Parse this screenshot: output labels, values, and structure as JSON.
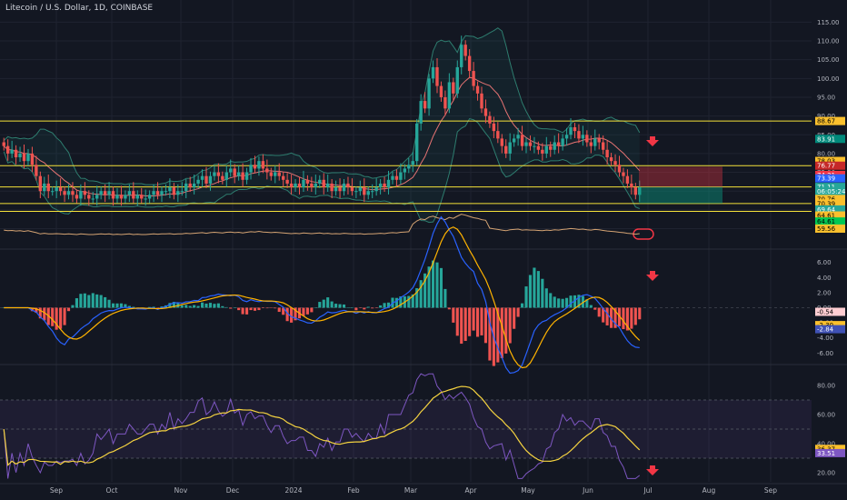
{
  "header": {
    "title": "Litecoin / U.S. Dollar, 1D, COINBASE"
  },
  "chart_data": {
    "type": "candlestick",
    "title": "Litecoin / U.S. Dollar, 1D, COINBASE",
    "price_ylim": [
      56,
      118
    ],
    "price_ticks": [
      "115.00",
      "110.00",
      "105.00",
      "100.00",
      "95.00",
      "90.00",
      "85.00",
      "80.00",
      "75.00",
      "70.00",
      "65.00",
      "60.00"
    ],
    "x_ticks": [
      "Sep",
      "Oct",
      "Nov",
      "Dec",
      "2024",
      "Feb",
      "Mar",
      "Apr",
      "May",
      "Jun",
      "Jul",
      "Aug",
      "Sep"
    ],
    "closes": [
      82,
      80,
      81,
      79,
      80,
      78,
      80,
      77,
      74,
      70,
      72,
      70,
      70,
      71,
      70,
      69,
      70,
      69,
      68,
      70,
      69,
      68,
      68,
      69,
      70,
      69,
      70,
      68,
      69,
      68,
      69,
      70,
      68,
      69,
      68,
      68,
      69,
      70,
      69,
      70,
      70,
      71,
      69,
      70,
      70,
      72,
      71,
      72,
      73,
      74,
      72,
      74,
      75,
      74,
      73,
      75,
      76,
      74,
      75,
      73,
      75,
      77,
      76,
      78,
      76,
      75,
      74,
      75,
      74,
      73,
      72,
      71,
      72,
      71,
      73,
      72,
      71,
      72,
      73,
      71,
      72,
      70,
      71,
      70,
      72,
      71,
      70,
      70,
      71,
      69,
      70,
      70,
      71,
      72,
      71,
      73,
      74,
      73,
      75,
      76,
      77,
      78,
      88,
      94,
      92,
      100,
      103,
      98,
      95,
      92,
      99,
      96,
      103,
      109,
      106,
      102,
      98,
      96,
      92,
      90,
      88,
      86,
      84,
      82,
      80,
      83,
      84,
      85,
      82,
      83,
      82,
      82,
      81,
      80,
      82,
      81,
      83,
      82,
      84,
      85,
      87,
      86,
      84,
      85,
      83,
      82,
      84,
      83,
      81,
      79,
      78,
      77,
      75,
      74,
      72,
      71,
      69,
      71
    ],
    "horizontal_levels": [
      88.67,
      76.77,
      71.11,
      66.7,
      64.61
    ],
    "price_tags": [
      {
        "value": 88.67,
        "label": "88.67",
        "bg": "#fbc02d",
        "fg": "#000000"
      },
      {
        "value": 83.91,
        "label": "83.91",
        "bg": "#00897b",
        "fg": "#ffffff"
      },
      {
        "value": 78.03,
        "label": "78.03",
        "bg": "#fbc02d",
        "fg": "#000000"
      },
      {
        "value": 76.77,
        "label": "76.77",
        "bg": "#c62828",
        "fg": "#ffffff"
      },
      {
        "value": 74.31,
        "label": "74.31",
        "bg": "#f23645",
        "fg": "#ffffff"
      },
      {
        "value": 73.39,
        "label": "73.39",
        "bg": "#2962ff",
        "fg": "#ffffff"
      },
      {
        "value": 71.11,
        "label": "71.11",
        "bg": "#26a69a",
        "fg": "#ffffff"
      },
      {
        "value": 69.9,
        "label": "06:05:24",
        "bg": "#26a69a",
        "fg": "#ffffff"
      },
      {
        "value": 67.9,
        "label": "70.76",
        "bg": "#fbc02d",
        "fg": "#000000"
      },
      {
        "value": 66.7,
        "label": "70.39",
        "bg": "#fbc02d",
        "fg": "#000000"
      },
      {
        "value": 65.1,
        "label": "69.64",
        "bg": "#26a69a",
        "fg": "#ffffff"
      },
      {
        "value": 63.5,
        "label": "64.61",
        "bg": "#fbc02d",
        "fg": "#000000"
      },
      {
        "value": 61.9,
        "label": "64.61",
        "bg": "#00c853",
        "fg": "#000000"
      },
      {
        "value": 60.0,
        "label": "59.56",
        "bg": "#fbc02d",
        "fg": "#000000"
      }
    ],
    "macd": {
      "ylim": [
        -6.8,
        6.8
      ],
      "ticks": [
        "6.00",
        "4.00",
        "2.00",
        "0.00",
        "-2.00",
        "-4.00",
        "-6.00"
      ],
      "tick_values": [
        6,
        4,
        2,
        0,
        -2,
        -4,
        -6
      ],
      "tags": [
        {
          "value": -0.54,
          "label": "-0.54",
          "bg": "#ffcdd2",
          "fg": "#000000"
        },
        {
          "value": -2.3,
          "label": "-2.30",
          "bg": "#fbc02d",
          "fg": "#000000"
        },
        {
          "value": -2.84,
          "label": "-2.84",
          "bg": "#3f51b5",
          "fg": "#ffffff"
        }
      ]
    },
    "rsi": {
      "ylim": [
        15,
        90
      ],
      "ticks": [
        "80.00",
        "60.00",
        "40.00",
        "20.00"
      ],
      "tick_values": [
        80,
        60,
        40,
        20
      ],
      "band": [
        30,
        70
      ],
      "tags": [
        {
          "value": 36.37,
          "label": "36.37",
          "bg": "#fbc02d",
          "fg": "#000000"
        },
        {
          "value": 33.51,
          "label": "33.51",
          "bg": "#7e57c2",
          "fg": "#ffffff"
        }
      ]
    },
    "colors": {
      "up": "#26a69a",
      "down": "#ef5350",
      "level": "#f5e23a",
      "bb": "#2e7d6f",
      "ma": "#e57373",
      "macd": "#2962ff",
      "signal": "#ffb300",
      "rsi": "#7e57c2",
      "rsi_ma": "#f5d340"
    }
  }
}
